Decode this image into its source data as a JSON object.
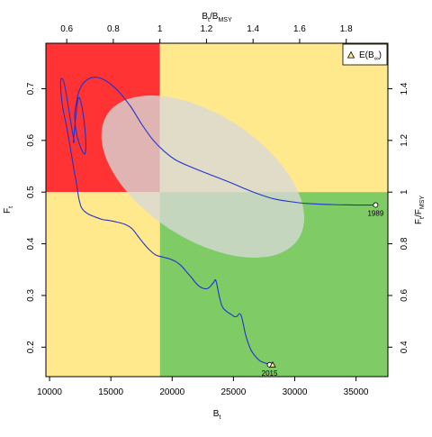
{
  "chart_data": {
    "type": "line",
    "title": "",
    "xlabel": {
      "main": "B",
      "sub": "t"
    },
    "ylabel": {
      "main": "F",
      "sub": "t"
    },
    "top_xlabel": {
      "main": "B",
      "sub1": "t",
      "mid": "/B",
      "sub2": "MSY"
    },
    "right_ylabel": {
      "main": "F",
      "sub1": "t",
      "mid": "/F",
      "sub2": "MSY"
    },
    "xlim": [
      9700,
      37600
    ],
    "ylim": [
      0.143,
      0.788
    ],
    "x_ticks": [
      10000,
      15000,
      20000,
      25000,
      30000,
      35000
    ],
    "y_ticks": [
      0.2,
      0.3,
      0.4,
      0.5,
      0.6,
      0.7
    ],
    "top_ticks": [
      {
        "x": 11400,
        "label": "0.6"
      },
      {
        "x": 15200,
        "label": "0.8"
      },
      {
        "x": 19000,
        "label": "1"
      },
      {
        "x": 22800,
        "label": "1.2"
      },
      {
        "x": 26600,
        "label": "1.4"
      },
      {
        "x": 30400,
        "label": "1.6"
      },
      {
        "x": 34200,
        "label": "1.8"
      }
    ],
    "right_ticks": [
      {
        "y": 0.2,
        "label": "0.4"
      },
      {
        "y": 0.3,
        "label": "0.6"
      },
      {
        "y": 0.4,
        "label": "0.8"
      },
      {
        "y": 0.5,
        "label": "1"
      },
      {
        "y": 0.6,
        "label": "1.2"
      },
      {
        "y": 0.7,
        "label": "1.4"
      }
    ],
    "reference": {
      "Bmsy": 19000,
      "Fmsy": 0.5
    },
    "colors": {
      "overfished_overfishing": "#ff3333",
      "caution": "#ffe98c",
      "healthy": "#7fcc66",
      "trajectory": "#2233cc",
      "ellipse": "#d9d9d9"
    },
    "confidence_ellipse": {
      "center": [
        22500,
        0.53
      ],
      "rx_data": 9300,
      "ry_data": 0.12,
      "angle_deg": 33
    },
    "trajectory": {
      "x": [
        36600,
        35000,
        33000,
        31000,
        29500,
        28300,
        27200,
        26000,
        24800,
        23300,
        21700,
        20300,
        19300,
        18400,
        17500,
        16600,
        15500,
        14400,
        13500,
        12800,
        12400,
        12200,
        12050,
        12150,
        12400,
        12700,
        12900,
        12950,
        12800,
        12550,
        12350,
        12200,
        12050,
        11950,
        12000,
        11800,
        11500,
        11200,
        11000,
        10900,
        10950,
        11100,
        11400,
        11700,
        12000,
        12200,
        12300,
        12400,
        12500,
        12600,
        12800,
        13200,
        13700,
        14300,
        14900,
        15500,
        16100,
        16700,
        17200,
        17700,
        18200,
        18700,
        19300,
        19900,
        20400,
        20800,
        21200,
        21600,
        21900,
        22200,
        22500,
        22800,
        23000,
        23200,
        23400,
        23550,
        23700,
        23850,
        24000,
        24150,
        24300,
        24500,
        24700,
        24900,
        25100,
        25300,
        25500,
        25650,
        25800,
        25950,
        26100,
        26250,
        26400,
        26600,
        26800,
        27000,
        27200,
        27500,
        27800,
        28000,
        28100
      ],
      "y": [
        0.475,
        0.475,
        0.476,
        0.478,
        0.482,
        0.487,
        0.495,
        0.506,
        0.518,
        0.532,
        0.547,
        0.562,
        0.58,
        0.602,
        0.632,
        0.666,
        0.698,
        0.718,
        0.722,
        0.712,
        0.695,
        0.675,
        0.65,
        0.62,
        0.595,
        0.578,
        0.575,
        0.6,
        0.64,
        0.675,
        0.682,
        0.66,
        0.625,
        0.598,
        0.6,
        0.625,
        0.67,
        0.71,
        0.72,
        0.712,
        0.688,
        0.66,
        0.625,
        0.585,
        0.542,
        0.516,
        0.5,
        0.486,
        0.477,
        0.47,
        0.464,
        0.457,
        0.452,
        0.447,
        0.445,
        0.442,
        0.438,
        0.43,
        0.415,
        0.4,
        0.387,
        0.378,
        0.374,
        0.37,
        0.364,
        0.356,
        0.345,
        0.334,
        0.325,
        0.318,
        0.314,
        0.313,
        0.315,
        0.32,
        0.326,
        0.33,
        0.315,
        0.298,
        0.284,
        0.276,
        0.272,
        0.268,
        0.265,
        0.262,
        0.259,
        0.26,
        0.265,
        0.26,
        0.245,
        0.228,
        0.215,
        0.205,
        0.196,
        0.188,
        0.182,
        0.177,
        0.173,
        0.17,
        0.168,
        0.167,
        0.166
      ]
    },
    "points": [
      {
        "label": "1989",
        "x": 36600,
        "y": 0.475,
        "marker": "circle"
      },
      {
        "label": "2015",
        "x": 27950,
        "y": 0.166,
        "marker": "circle"
      },
      {
        "label": "",
        "x": 28200,
        "y": 0.166,
        "marker": "triangle"
      }
    ],
    "legend": {
      "position": "top-right",
      "entries": [
        {
          "main": "E(B",
          "sub": "∞",
          "close": ")",
          "marker": "triangle"
        }
      ]
    }
  }
}
